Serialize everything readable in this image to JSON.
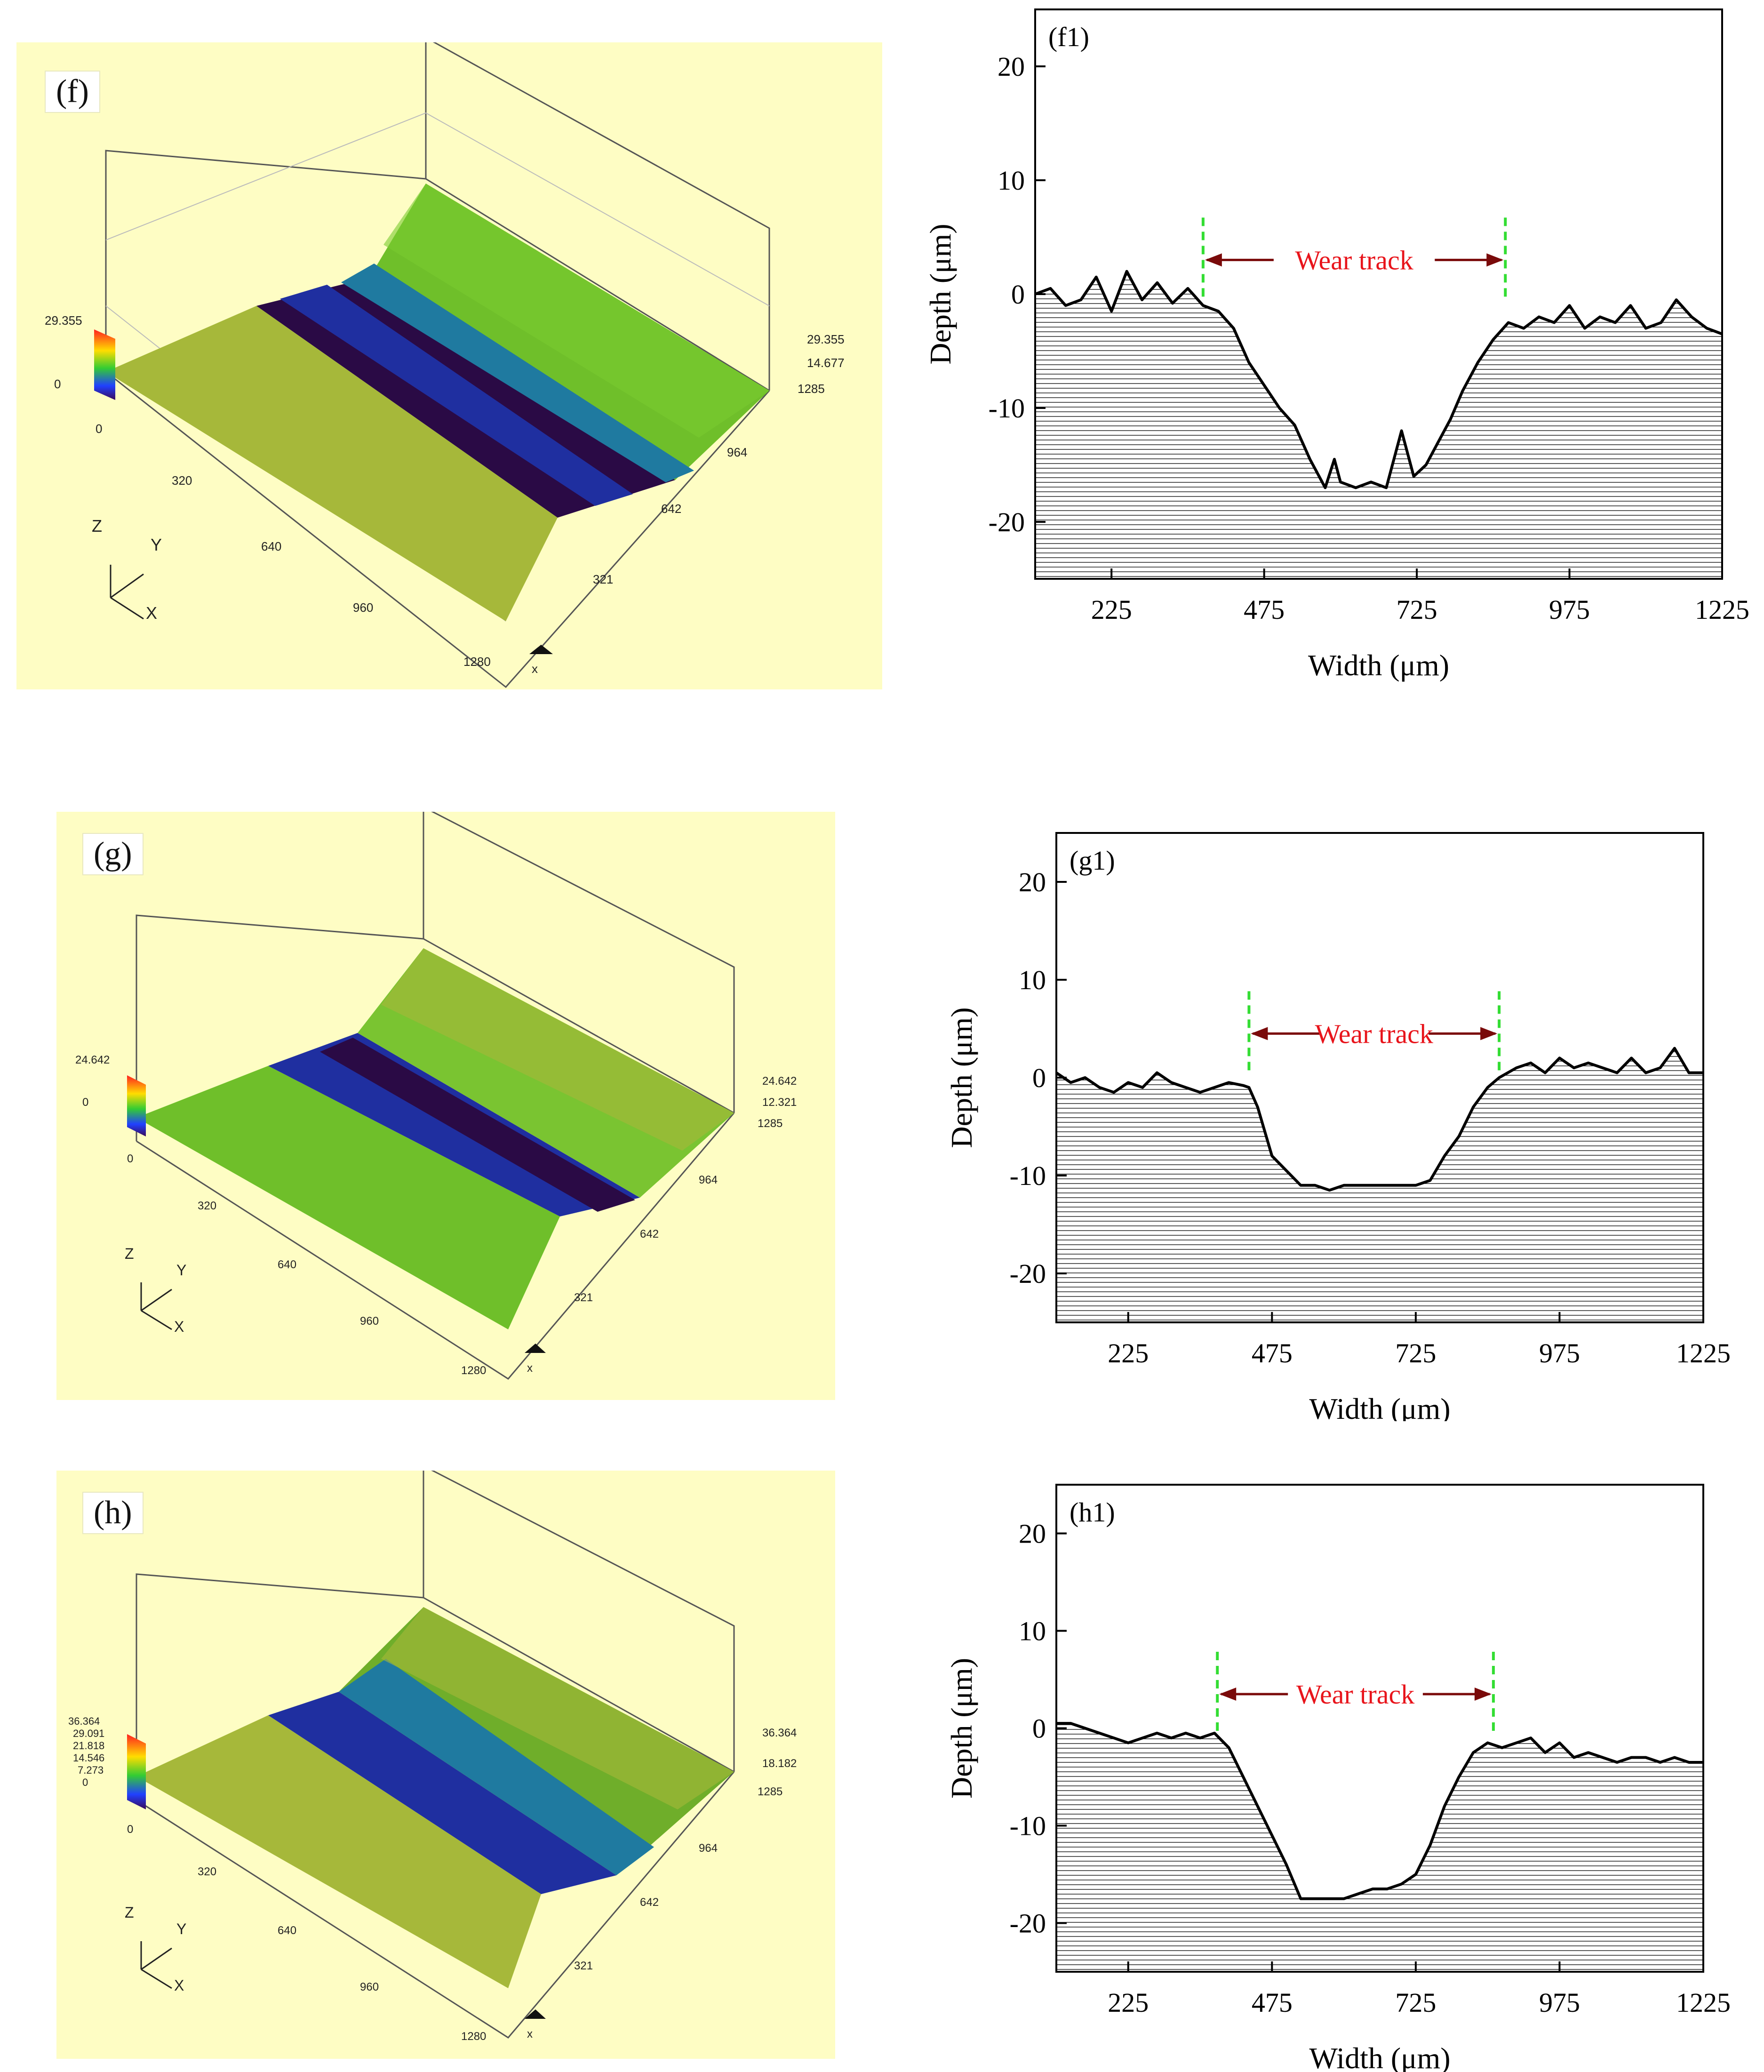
{
  "panels_3d": [
    {
      "label": "(f)",
      "z_max": "29.355",
      "z_mid": "14.677",
      "z_zero": "0",
      "legend_top": "29.355",
      "legend_bottom": "0",
      "axis_z": "Z",
      "axis_y": "Y",
      "axis_x": "X",
      "x_ticks": [
        "320",
        "640",
        "960",
        "1280"
      ],
      "y_ticks": [
        "321",
        "642",
        "964",
        "1285"
      ],
      "x_letter": "x"
    },
    {
      "label": "(g)",
      "z_max": "24.642",
      "z_mid": "12.321",
      "z_zero": "0",
      "legend_top": "24.642",
      "legend_bottom": "0",
      "axis_z": "Z",
      "axis_y": "Y",
      "axis_x": "X",
      "x_ticks": [
        "320",
        "640",
        "960",
        "1280"
      ],
      "y_ticks": [
        "321",
        "642",
        "964",
        "1285"
      ],
      "x_letter": "x"
    },
    {
      "label": "(h)",
      "z_max": "36.364",
      "z_mid": "18.182",
      "z_zero": "0",
      "legend_top": "36.364",
      "legend_bottom": "0",
      "legend_extra": [
        "29.091",
        "21.818",
        "14.546",
        "7.273"
      ],
      "axis_z": "Z",
      "axis_y": "Y",
      "axis_x": "X",
      "x_ticks": [
        "320",
        "640",
        "960",
        "1280"
      ],
      "y_ticks": [
        "321",
        "642",
        "964",
        "1285"
      ],
      "x_letter": "x"
    }
  ],
  "colors": {
    "panel_bg": "#fefdc4",
    "surface_green": "#6fbf2a",
    "surface_olive": "#a6b83a",
    "trough_blue": "#1f2fa0",
    "trough_purple": "#2a0a45",
    "wear_text": "#e8141b",
    "wear_arrow": "#7a0a0a",
    "marker_green": "#33dd33",
    "profile_line": "#000000",
    "hatch": "#000000"
  },
  "chart_data": [
    {
      "type": "area",
      "panel_label": "(f1)",
      "xlabel": "Width (μm)",
      "ylabel": "Depth (μm)",
      "xlim": [
        100,
        1225
      ],
      "ylim": [
        -25,
        25
      ],
      "x_ticks": [
        225,
        475,
        725,
        975,
        1225
      ],
      "y_ticks": [
        20,
        10,
        0,
        -10,
        -20
      ],
      "annotation": "Wear track",
      "track_edges": [
        375,
        870
      ],
      "marker_y": 3,
      "x": [
        100,
        125,
        150,
        175,
        200,
        225,
        250,
        275,
        300,
        325,
        350,
        375,
        400,
        425,
        450,
        475,
        500,
        525,
        550,
        560,
        575,
        590,
        600,
        625,
        650,
        675,
        690,
        700,
        720,
        740,
        760,
        780,
        800,
        825,
        850,
        875,
        900,
        925,
        950,
        975,
        1000,
        1025,
        1050,
        1075,
        1100,
        1125,
        1150,
        1175,
        1200,
        1225
      ],
      "y": [
        0,
        0.5,
        -1,
        -0.5,
        1.5,
        -1.5,
        2,
        -0.5,
        1,
        -0.8,
        0.5,
        -1,
        -1.5,
        -3,
        -6,
        -8,
        -10,
        -11.5,
        -14.5,
        -15.5,
        -17,
        -14.5,
        -16.5,
        -17,
        -16.5,
        -17,
        -14,
        -12,
        -16,
        -15,
        -13,
        -11,
        -8.5,
        -6,
        -4,
        -2.5,
        -3,
        -2,
        -2.5,
        -1,
        -3,
        -2,
        -2.5,
        -1,
        -3,
        -2.5,
        -0.5,
        -2,
        -3,
        -3.5
      ]
    },
    {
      "type": "area",
      "panel_label": "(g1)",
      "xlabel": "Width (μm)",
      "ylabel": "Depth (μm)",
      "xlim": [
        100,
        1225
      ],
      "ylim": [
        -25,
        25
      ],
      "x_ticks": [
        225,
        475,
        725,
        975,
        1225
      ],
      "y_ticks": [
        20,
        10,
        0,
        -10,
        -20
      ],
      "annotation": "Wear track",
      "track_edges": [
        435,
        870
      ],
      "marker_y": 4.5,
      "x": [
        100,
        125,
        150,
        175,
        200,
        225,
        250,
        275,
        300,
        325,
        350,
        375,
        400,
        425,
        435,
        450,
        475,
        500,
        525,
        550,
        575,
        600,
        625,
        650,
        675,
        700,
        725,
        750,
        775,
        800,
        825,
        850,
        870,
        900,
        925,
        950,
        975,
        1000,
        1025,
        1050,
        1075,
        1100,
        1125,
        1150,
        1175,
        1200,
        1225
      ],
      "y": [
        0.5,
        -0.5,
        0,
        -1,
        -1.5,
        -0.5,
        -1,
        0.5,
        -0.5,
        -1,
        -1.5,
        -1,
        -0.5,
        -0.8,
        -1,
        -3,
        -8,
        -9.5,
        -11,
        -11,
        -11.5,
        -11,
        -11,
        -11,
        -11,
        -11,
        -11,
        -10.5,
        -8,
        -6,
        -3,
        -1,
        0,
        1,
        1.5,
        0.5,
        2,
        1,
        1.5,
        1,
        0.5,
        2,
        0.5,
        1,
        3,
        0.5,
        0.5
      ]
    },
    {
      "type": "area",
      "panel_label": "(h1)",
      "xlabel": "Width (μm)",
      "ylabel": "Depth (μm)",
      "xlim": [
        100,
        1225
      ],
      "ylim": [
        -25,
        25
      ],
      "x_ticks": [
        225,
        475,
        725,
        975,
        1225
      ],
      "y_ticks": [
        20,
        10,
        0,
        -10,
        -20
      ],
      "annotation": "Wear track",
      "track_edges": [
        380,
        860
      ],
      "marker_y": 3.5,
      "x": [
        100,
        125,
        150,
        175,
        200,
        225,
        250,
        275,
        300,
        325,
        350,
        375,
        400,
        425,
        450,
        475,
        500,
        525,
        550,
        575,
        600,
        625,
        650,
        675,
        700,
        725,
        750,
        775,
        800,
        825,
        850,
        875,
        900,
        925,
        950,
        975,
        1000,
        1025,
        1050,
        1075,
        1100,
        1125,
        1150,
        1175,
        1200,
        1225
      ],
      "y": [
        0.5,
        0.5,
        0,
        -0.5,
        -1,
        -1.5,
        -1,
        -0.5,
        -1,
        -0.5,
        -1,
        -0.5,
        -2,
        -5,
        -8,
        -11,
        -14,
        -17.5,
        -17.5,
        -17.5,
        -17.5,
        -17,
        -16.5,
        -16.5,
        -16,
        -15,
        -12,
        -8,
        -5,
        -2.5,
        -1.5,
        -2,
        -1.5,
        -1,
        -2.5,
        -1.5,
        -3,
        -2.5,
        -3,
        -3.5,
        -3,
        -3,
        -3.5,
        -3,
        -3.5,
        -3.5
      ]
    }
  ]
}
